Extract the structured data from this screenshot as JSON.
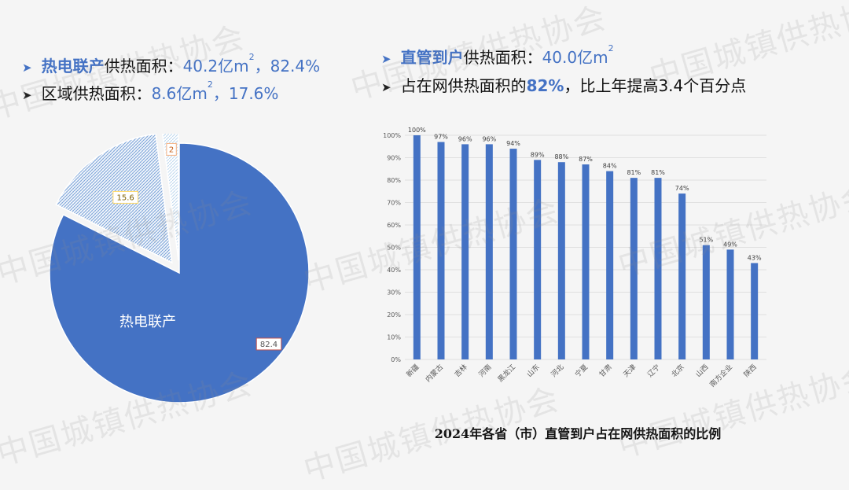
{
  "watermark_text": "中国城镇供热协会",
  "left_summary": {
    "line1": {
      "highlight": "热电联产",
      "label": "供热面积：",
      "value": "40.2亿m",
      "sup": "2",
      "suffix": "，82.4%"
    },
    "line2": {
      "label": "区域供热面积：",
      "value": "8.6亿m",
      "sup": "2",
      "suffix": "，17.6%"
    }
  },
  "right_summary": {
    "line1": {
      "highlight": "直管到户",
      "label": "供热面积：",
      "value": "40.0亿m",
      "sup": "2"
    },
    "line2": {
      "label": "占在网供热面积的",
      "highlight": "82%",
      "suffix": "，比上年提高3.4个百分点"
    }
  },
  "bar_caption": "2024年各省（市）直管到户占在网供热面积的比例",
  "colors": {
    "accent": "#4472C4",
    "pie_light": "#BDD7EE",
    "pie_small": "#DEEBF7"
  },
  "chart_data": [
    {
      "type": "pie",
      "slices": [
        {
          "name": "热电联产",
          "value": 82.4,
          "label": "82.4"
        },
        {
          "name": "",
          "value": 15.6,
          "label": "15.6"
        },
        {
          "name": "",
          "value": 2,
          "label": "2"
        }
      ],
      "slice_inner_label": "热电联产"
    },
    {
      "type": "bar",
      "categories": [
        "新疆",
        "内蒙古",
        "吉林",
        "河南",
        "黑龙江",
        "山东",
        "河北",
        "宁夏",
        "甘肃",
        "天津",
        "辽宁",
        "北京",
        "山西",
        "南方企业",
        "陕西"
      ],
      "values": [
        100,
        97,
        96,
        96,
        94,
        89,
        88,
        87,
        84,
        81,
        81,
        74,
        51,
        49,
        43
      ],
      "data_labels": [
        "100%",
        "97%",
        "96%",
        "96%",
        "94%",
        "89%",
        "88%",
        "87%",
        "84%",
        "81%",
        "81%",
        "74%",
        "51%",
        "49%",
        "43%"
      ],
      "y_ticks": [
        "0%",
        "10%",
        "20%",
        "30%",
        "40%",
        "50%",
        "60%",
        "70%",
        "80%",
        "90%",
        "100%"
      ],
      "ylim": [
        0,
        100
      ],
      "grid": true,
      "title": "2024年各省（市）直管到户占在网供热面积的比例"
    }
  ]
}
